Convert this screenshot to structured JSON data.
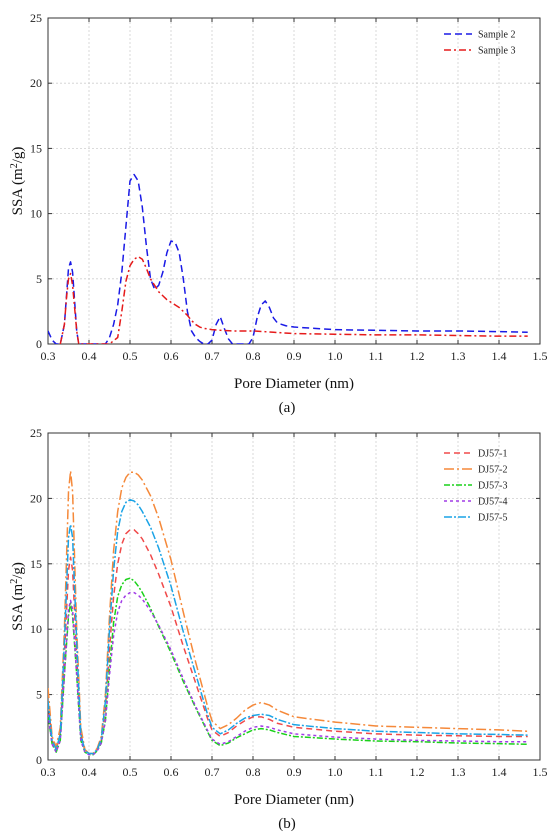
{
  "chart_data": [
    {
      "type": "line",
      "panel_label": "(a)",
      "xlabel": "Pore Diameter (nm)",
      "ylabel_main": "SSA (m",
      "ylabel_sup": "2",
      "ylabel_end": "/g)",
      "xlim": [
        0.3,
        1.5
      ],
      "ylim": [
        0,
        25
      ],
      "xticks": [
        "0.3",
        "0.4",
        "0.5",
        "0.6",
        "0.7",
        "0.8",
        "0.9",
        "1.0",
        "1.1",
        "1.2",
        "1.3",
        "1.4",
        "1.5"
      ],
      "yticks": [
        "0",
        "5",
        "10",
        "15",
        "20",
        "25"
      ],
      "grid": true,
      "legend_position": "top-right",
      "series": [
        {
          "name": "Sample 2",
          "color": "#1a1ae6",
          "dash": "7,4",
          "x": [
            0.3,
            0.31,
            0.32,
            0.33,
            0.34,
            0.35,
            0.355,
            0.36,
            0.37,
            0.375,
            0.38,
            0.39,
            0.4,
            0.43,
            0.44,
            0.45,
            0.46,
            0.47,
            0.48,
            0.49,
            0.5,
            0.51,
            0.52,
            0.53,
            0.54,
            0.55,
            0.56,
            0.57,
            0.58,
            0.59,
            0.6,
            0.61,
            0.62,
            0.63,
            0.64,
            0.65,
            0.66,
            0.67,
            0.68,
            0.69,
            0.7,
            0.71,
            0.72,
            0.73,
            0.74,
            0.75,
            0.76,
            0.77,
            0.78,
            0.79,
            0.8,
            0.81,
            0.82,
            0.83,
            0.84,
            0.85,
            0.86,
            0.88,
            0.9,
            0.95,
            1.0,
            1.1,
            1.2,
            1.3,
            1.4,
            1.47
          ],
          "y": [
            1.0,
            0.3,
            0.0,
            0.0,
            1.5,
            5.8,
            6.3,
            5.5,
            1.0,
            0.0,
            0.0,
            0.0,
            0.0,
            0.0,
            0.0,
            0.5,
            1.5,
            3.0,
            5.5,
            9.0,
            12.5,
            13.0,
            12.5,
            10.5,
            7.5,
            5.0,
            4.2,
            4.5,
            5.5,
            7.0,
            7.9,
            7.8,
            7.0,
            5.0,
            2.5,
            1.0,
            0.5,
            0.2,
            0.0,
            0.0,
            0.3,
            1.5,
            2.1,
            1.2,
            0.4,
            0.0,
            0.0,
            0.0,
            0.0,
            0.0,
            0.5,
            2.0,
            3.0,
            3.3,
            2.8,
            2.0,
            1.6,
            1.4,
            1.3,
            1.2,
            1.1,
            1.05,
            1.0,
            1.0,
            0.95,
            0.9
          ]
        },
        {
          "name": "Sample 3",
          "color": "#e61a1a",
          "dash": "7,3,2,3",
          "x": [
            0.33,
            0.34,
            0.345,
            0.35,
            0.355,
            0.36,
            0.37,
            0.375,
            0.38,
            0.4,
            0.45,
            0.47,
            0.48,
            0.49,
            0.5,
            0.51,
            0.52,
            0.53,
            0.54,
            0.55,
            0.56,
            0.57,
            0.58,
            0.59,
            0.6,
            0.61,
            0.62,
            0.63,
            0.64,
            0.65,
            0.66,
            0.67,
            0.68,
            0.7,
            0.72,
            0.75,
            0.8,
            0.85,
            0.9,
            1.0,
            1.1,
            1.2,
            1.3,
            1.4,
            1.47
          ],
          "y": [
            0.0,
            1.5,
            3.5,
            5.0,
            5.4,
            4.5,
            1.0,
            0.0,
            0.0,
            0.0,
            0.0,
            0.5,
            2.5,
            4.8,
            6.0,
            6.5,
            6.7,
            6.5,
            5.8,
            5.0,
            4.5,
            4.0,
            3.7,
            3.4,
            3.2,
            3.0,
            2.8,
            2.5,
            2.2,
            1.8,
            1.5,
            1.3,
            1.2,
            1.1,
            1.05,
            1.0,
            1.0,
            0.9,
            0.8,
            0.75,
            0.7,
            0.7,
            0.65,
            0.6,
            0.6
          ]
        }
      ]
    },
    {
      "type": "line",
      "panel_label": "(b)",
      "xlabel": "Pore Diameter (nm)",
      "ylabel_main": "SSA (m",
      "ylabel_sup": "2",
      "ylabel_end": "/g)",
      "xlim": [
        0.3,
        1.5
      ],
      "ylim": [
        0,
        25
      ],
      "xticks": [
        "0.3",
        "0.4",
        "0.5",
        "0.6",
        "0.7",
        "0.8",
        "0.9",
        "1.0",
        "1.1",
        "1.2",
        "1.3",
        "1.4",
        "1.5"
      ],
      "yticks": [
        "0",
        "5",
        "10",
        "15",
        "20",
        "25"
      ],
      "grid": true,
      "legend_position": "top-right",
      "series": [
        {
          "name": "DJ57-1",
          "color": "#f04a4a",
          "dash": "6,4",
          "x": [
            0.3,
            0.31,
            0.32,
            0.33,
            0.34,
            0.35,
            0.355,
            0.36,
            0.37,
            0.38,
            0.39,
            0.4,
            0.41,
            0.42,
            0.43,
            0.44,
            0.45,
            0.46,
            0.47,
            0.48,
            0.49,
            0.5,
            0.51,
            0.52,
            0.53,
            0.55,
            0.57,
            0.6,
            0.63,
            0.66,
            0.69,
            0.7,
            0.72,
            0.74,
            0.76,
            0.78,
            0.8,
            0.82,
            0.84,
            0.86,
            0.9,
            1.0,
            1.1,
            1.2,
            1.3,
            1.4,
            1.47
          ],
          "y": [
            4.5,
            1.5,
            0.8,
            2.0,
            8.0,
            14.5,
            15.5,
            14.5,
            8.0,
            2.0,
            0.7,
            0.5,
            0.5,
            0.8,
            1.5,
            4.0,
            8.5,
            12.5,
            15.0,
            16.5,
            17.3,
            17.6,
            17.6,
            17.3,
            16.9,
            15.7,
            14.2,
            11.7,
            8.7,
            5.9,
            3.1,
            2.3,
            1.8,
            2.1,
            2.6,
            3.0,
            3.3,
            3.3,
            3.1,
            2.8,
            2.5,
            2.2,
            2.0,
            1.9,
            1.85,
            1.8,
            1.8
          ]
        },
        {
          "name": "DJ57-2",
          "color": "#f5893a",
          "dash": "10,3,2,3",
          "x": [
            0.3,
            0.31,
            0.32,
            0.33,
            0.34,
            0.35,
            0.355,
            0.36,
            0.37,
            0.38,
            0.39,
            0.4,
            0.41,
            0.42,
            0.43,
            0.44,
            0.45,
            0.46,
            0.47,
            0.48,
            0.49,
            0.5,
            0.51,
            0.52,
            0.53,
            0.55,
            0.57,
            0.6,
            0.63,
            0.66,
            0.69,
            0.7,
            0.72,
            0.74,
            0.76,
            0.78,
            0.8,
            0.82,
            0.84,
            0.86,
            0.9,
            1.0,
            1.1,
            1.2,
            1.3,
            1.4,
            1.47
          ],
          "y": [
            5.5,
            1.8,
            1.0,
            2.5,
            10.0,
            20.5,
            22.1,
            20.5,
            10.0,
            2.5,
            0.8,
            0.5,
            0.5,
            0.9,
            1.8,
            5.0,
            11.0,
            16.0,
            19.0,
            20.8,
            21.6,
            22.0,
            22.0,
            21.8,
            21.4,
            20.2,
            18.5,
            15.3,
            11.3,
            7.5,
            4.0,
            3.0,
            2.4,
            2.7,
            3.2,
            3.8,
            4.2,
            4.4,
            4.2,
            3.8,
            3.3,
            2.9,
            2.6,
            2.5,
            2.4,
            2.3,
            2.2
          ]
        },
        {
          "name": "DJ57-3",
          "color": "#1ad11a",
          "dash": "6,2,2,2",
          "x": [
            0.3,
            0.31,
            0.32,
            0.33,
            0.34,
            0.35,
            0.355,
            0.36,
            0.37,
            0.38,
            0.39,
            0.4,
            0.41,
            0.42,
            0.43,
            0.44,
            0.45,
            0.46,
            0.47,
            0.48,
            0.49,
            0.5,
            0.51,
            0.52,
            0.53,
            0.55,
            0.57,
            0.6,
            0.63,
            0.66,
            0.69,
            0.7,
            0.72,
            0.74,
            0.76,
            0.78,
            0.8,
            0.82,
            0.84,
            0.86,
            0.9,
            1.0,
            1.1,
            1.2,
            1.3,
            1.4,
            1.47
          ],
          "y": [
            3.5,
            1.2,
            0.6,
            1.5,
            6.5,
            11.0,
            12.0,
            11.0,
            6.5,
            1.5,
            0.6,
            0.4,
            0.4,
            0.7,
            1.3,
            3.0,
            7.0,
            10.5,
            12.5,
            13.4,
            13.8,
            13.9,
            13.7,
            13.3,
            12.8,
            11.6,
            10.2,
            8.2,
            6.0,
            4.0,
            2.1,
            1.5,
            1.1,
            1.3,
            1.7,
            2.0,
            2.3,
            2.4,
            2.3,
            2.1,
            1.8,
            1.6,
            1.45,
            1.4,
            1.3,
            1.25,
            1.2
          ]
        },
        {
          "name": "DJ57-4",
          "color": "#a13be6",
          "dash": "3,3",
          "x": [
            0.3,
            0.31,
            0.32,
            0.33,
            0.34,
            0.35,
            0.355,
            0.36,
            0.37,
            0.38,
            0.39,
            0.4,
            0.41,
            0.42,
            0.43,
            0.44,
            0.45,
            0.46,
            0.47,
            0.48,
            0.49,
            0.5,
            0.51,
            0.52,
            0.53,
            0.55,
            0.57,
            0.6,
            0.63,
            0.66,
            0.69,
            0.7,
            0.72,
            0.74,
            0.76,
            0.78,
            0.8,
            0.82,
            0.84,
            0.86,
            0.9,
            1.0,
            1.1,
            1.2,
            1.3,
            1.4,
            1.47
          ],
          "y": [
            3.5,
            1.2,
            0.6,
            1.5,
            6.5,
            11.5,
            12.2,
            11.5,
            6.5,
            1.5,
            0.6,
            0.4,
            0.4,
            0.7,
            1.3,
            3.0,
            6.5,
            9.5,
            11.3,
            12.2,
            12.6,
            12.8,
            12.8,
            12.6,
            12.3,
            11.4,
            10.3,
            8.4,
            6.2,
            4.1,
            2.2,
            1.6,
            1.2,
            1.4,
            1.8,
            2.2,
            2.5,
            2.6,
            2.5,
            2.3,
            2.0,
            1.75,
            1.6,
            1.5,
            1.45,
            1.4,
            1.4
          ]
        },
        {
          "name": "DJ57-5",
          "color": "#1aa3e6",
          "dash": "8,2,2,2",
          "x": [
            0.3,
            0.31,
            0.32,
            0.33,
            0.34,
            0.35,
            0.355,
            0.36,
            0.37,
            0.38,
            0.39,
            0.4,
            0.41,
            0.42,
            0.43,
            0.44,
            0.45,
            0.46,
            0.47,
            0.48,
            0.49,
            0.5,
            0.51,
            0.52,
            0.53,
            0.55,
            0.57,
            0.6,
            0.63,
            0.66,
            0.69,
            0.7,
            0.72,
            0.74,
            0.76,
            0.78,
            0.8,
            0.82,
            0.84,
            0.86,
            0.9,
            1.0,
            1.1,
            1.2,
            1.3,
            1.4,
            1.47
          ],
          "y": [
            4.5,
            1.5,
            0.8,
            2.0,
            9.0,
            17.0,
            18.0,
            17.0,
            9.0,
            2.0,
            0.7,
            0.5,
            0.5,
            0.8,
            1.6,
            4.5,
            10.0,
            14.5,
            17.5,
            19.0,
            19.7,
            19.9,
            19.8,
            19.5,
            19.0,
            17.8,
            16.2,
            13.3,
            9.8,
            6.6,
            3.4,
            2.5,
            2.0,
            2.3,
            2.8,
            3.2,
            3.4,
            3.5,
            3.4,
            3.1,
            2.7,
            2.4,
            2.2,
            2.1,
            2.0,
            1.95,
            1.9
          ]
        }
      ]
    }
  ]
}
